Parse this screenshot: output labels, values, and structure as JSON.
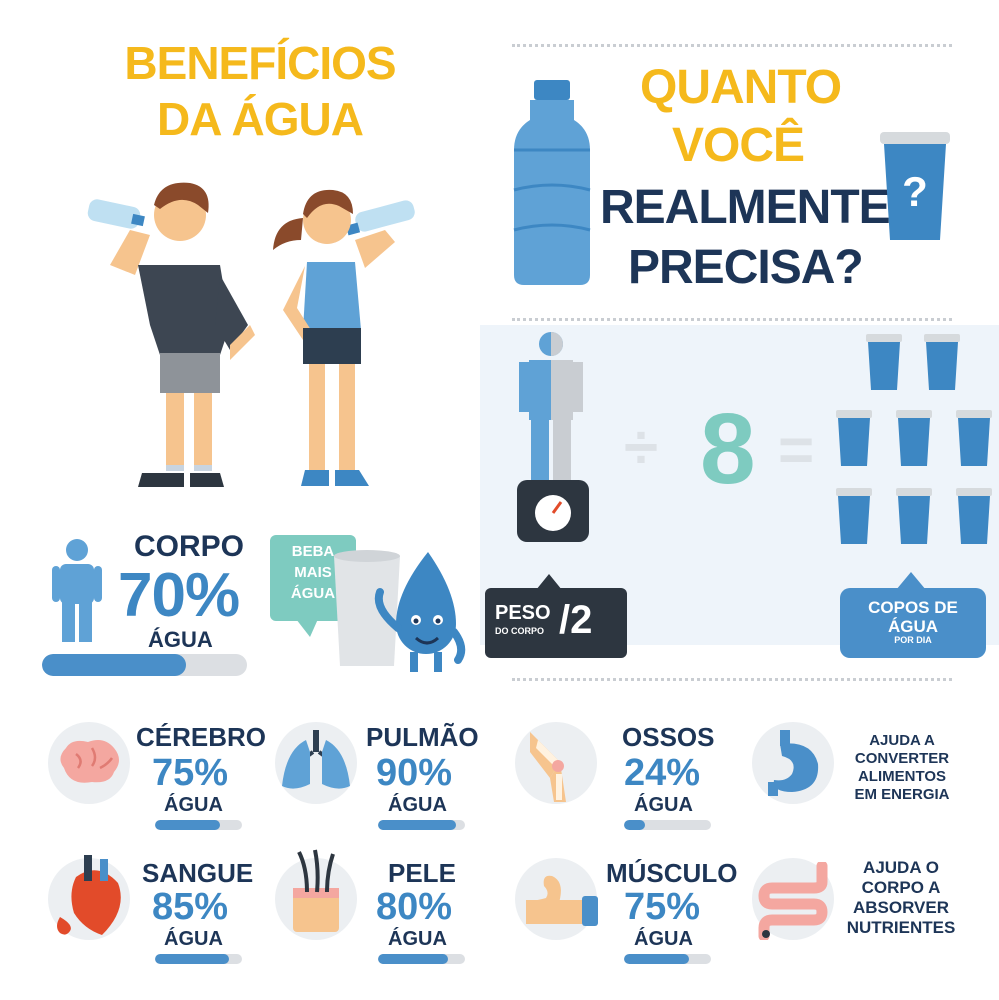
{
  "left": {
    "title_line1": "BENEFÍCIOS",
    "title_line2": "DA ÁGUA",
    "corpo": {
      "label": "CORPO",
      "value": "70%",
      "unit": "ÁGUA",
      "fraction": 0.7
    },
    "speech_bubble": [
      "BEBA",
      "MAIS",
      "ÁGUA"
    ]
  },
  "right": {
    "q_line1": "QUANTO",
    "q_line2": "VOCÊ",
    "q_line3": "REALMENTE",
    "q_line4": "PRECISA?",
    "cup_mark": "?",
    "divide_symbol": "÷",
    "divisor": "8",
    "equals_symbol": "=",
    "peso_label_1": "PESO",
    "peso_label_2": "DO CORPO",
    "peso_div": "/2",
    "copos_line1": "COPOS DE",
    "copos_line2": "ÁGUA",
    "copos_line3": "POR DIA"
  },
  "organs": [
    {
      "name": "CÉREBRO",
      "value": "75%",
      "unit": "ÁGUA",
      "fraction": 0.75,
      "icon": "brain-icon"
    },
    {
      "name": "PULMÃO",
      "value": "90%",
      "unit": "ÁGUA",
      "fraction": 0.9,
      "icon": "lungs-icon"
    },
    {
      "name": "OSSOS",
      "value": "24%",
      "unit": "ÁGUA",
      "fraction": 0.24,
      "icon": "bone-joint-icon"
    },
    {
      "name": "SANGUE",
      "value": "85%",
      "unit": "ÁGUA",
      "fraction": 0.85,
      "icon": "heart-icon"
    },
    {
      "name": "PELE",
      "value": "80%",
      "unit": "ÁGUA",
      "fraction": 0.8,
      "icon": "skin-hair-icon"
    },
    {
      "name": "MÚSCULO",
      "value": "75%",
      "unit": "ÁGUA",
      "fraction": 0.75,
      "icon": "muscle-arm-icon"
    }
  ],
  "benefits": [
    {
      "lines": [
        "AJUDA A",
        "CONVERTER",
        "ALIMENTOS",
        "EM ENERGIA"
      ],
      "icon": "stomach-icon"
    },
    {
      "lines": [
        "AJUDA O",
        "CORPO A",
        "ABSORVER",
        "NUTRIENTES"
      ],
      "icon": "intestine-icon"
    }
  ],
  "colors": {
    "yellow": "#f5b91c",
    "navy": "#1d3557",
    "blue": "#3d87c3",
    "teal": "#7ecbc0",
    "light_panel": "#eef4fa"
  }
}
